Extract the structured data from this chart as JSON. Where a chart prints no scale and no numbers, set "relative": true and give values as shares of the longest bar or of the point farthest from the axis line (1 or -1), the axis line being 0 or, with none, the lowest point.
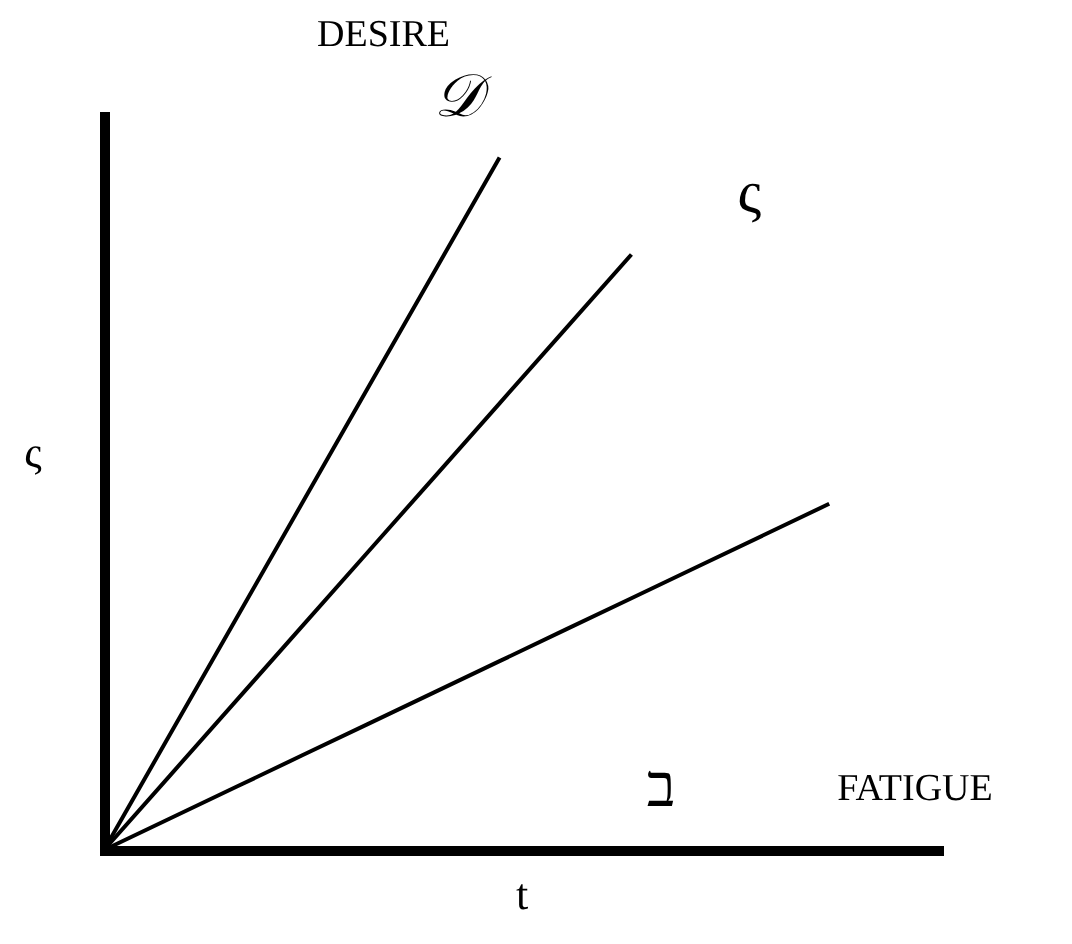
{
  "chart_data": {
    "type": "line",
    "relative": true,
    "xlabel": "t",
    "ylabel": "ς",
    "grid": false,
    "marker": "none",
    "line_style": "solid",
    "categories": [
      null,
      null,
      null,
      null,
      null,
      null,
      null,
      null,
      null,
      null,
      null,
      null
    ],
    "series": [
      {
        "name": "𝒟",
        "color": "#000000",
        "values": [
          0,
          0.1667,
          0.3333,
          0.5,
          0.6667,
          0.8333,
          1,
          null,
          null,
          null,
          null,
          null
        ]
      },
      {
        "name": "ς",
        "color": "#000000",
        "values": [
          0,
          0.1075,
          0.215,
          0.3225,
          0.43,
          0.5375,
          0.645,
          0.7525,
          0.86,
          null,
          null,
          null
        ]
      },
      {
        "name": "ב",
        "color": "#000000",
        "values": [
          0,
          0.0455,
          0.0909,
          0.1364,
          0.1818,
          0.2273,
          0.2727,
          0.3182,
          0.3636,
          0.4091,
          0.4545,
          0.5
        ]
      }
    ],
    "annotations": [
      "DESIRE",
      "FATIGUE"
    ]
  }
}
